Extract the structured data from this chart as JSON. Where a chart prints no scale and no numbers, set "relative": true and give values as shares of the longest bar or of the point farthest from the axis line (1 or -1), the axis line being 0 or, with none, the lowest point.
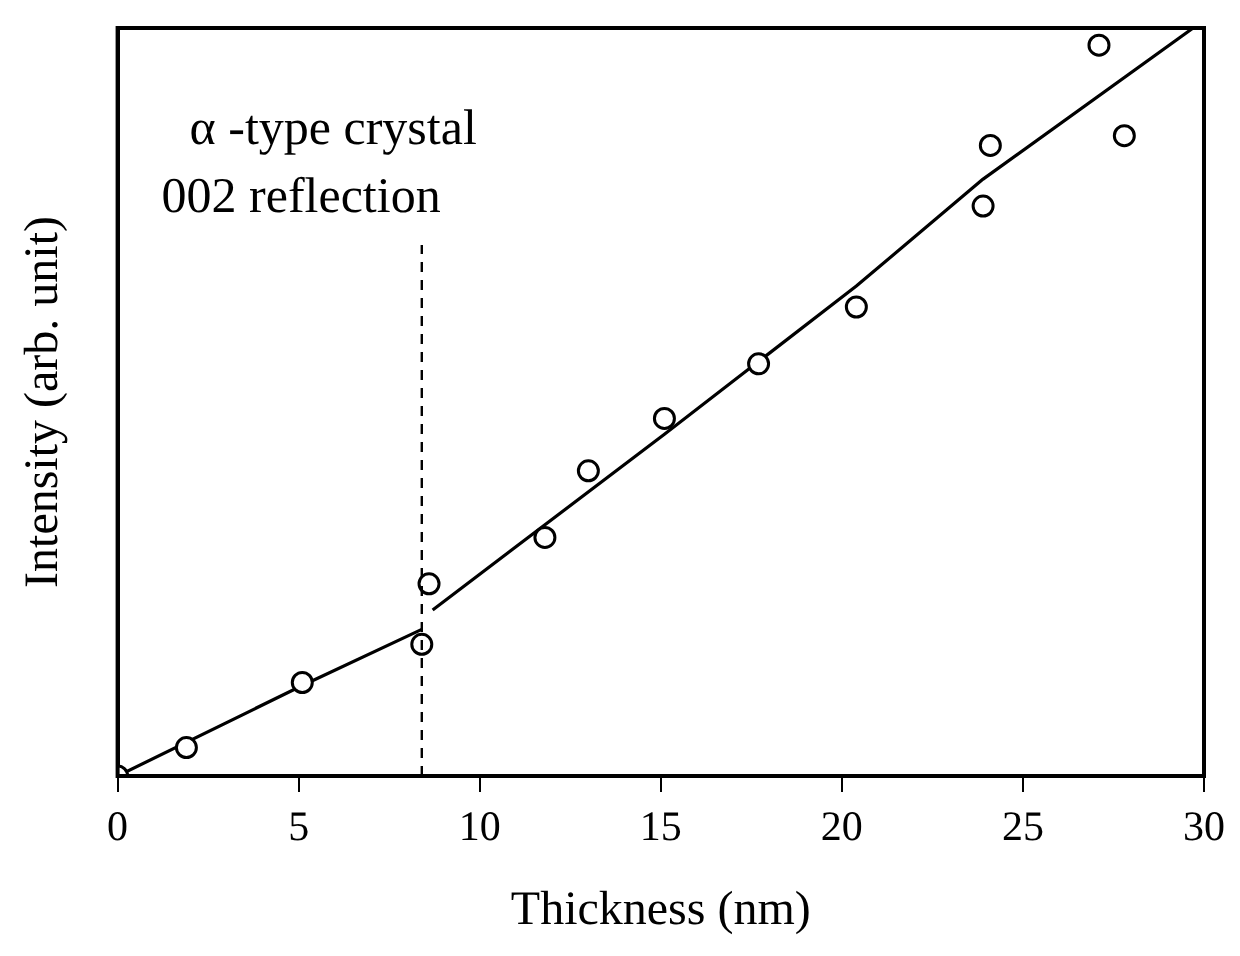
{
  "chart_data": {
    "type": "scatter",
    "relative": true,
    "xlabel": "Thickness (nm)",
    "ylabel": "Intensity (arb. unit)",
    "annotations": [
      "α -type crystal",
      "002 reflection"
    ],
    "xlim": [
      0,
      30
    ],
    "xticks": [
      0,
      5,
      10,
      15,
      20,
      25,
      30
    ],
    "marker": "circle",
    "ref_lines": [
      {
        "axis": "x",
        "value": 8.4,
        "color": "#000000",
        "line_style": "dashed"
      }
    ],
    "series": [
      {
        "color": "#000000",
        "x": [
          0,
          1.9,
          5.1,
          8.4,
          8.6,
          11.8,
          13.0,
          15.1,
          17.7,
          20.4,
          23.9,
          24.1,
          27.1,
          27.8
        ],
        "values": [
          0,
          0.038,
          0.125,
          0.176,
          0.257,
          0.319,
          0.408,
          0.478,
          0.551,
          0.627,
          0.762,
          0.843,
          0.977,
          0.856
        ]
      },
      {
        "type": "line",
        "marker": "none",
        "color": "#000000",
        "line_style": "solid",
        "x": [
          0,
          5.1,
          8.4
        ],
        "values": [
          0,
          0.121,
          0.196
        ]
      },
      {
        "type": "line",
        "marker": "none",
        "color": "#000000",
        "line_style": "solid",
        "x": [
          8.7,
          15.1,
          20.4,
          23.9,
          29.7
        ],
        "values": [
          0.222,
          0.457,
          0.655,
          0.798,
          1
        ]
      }
    ]
  }
}
